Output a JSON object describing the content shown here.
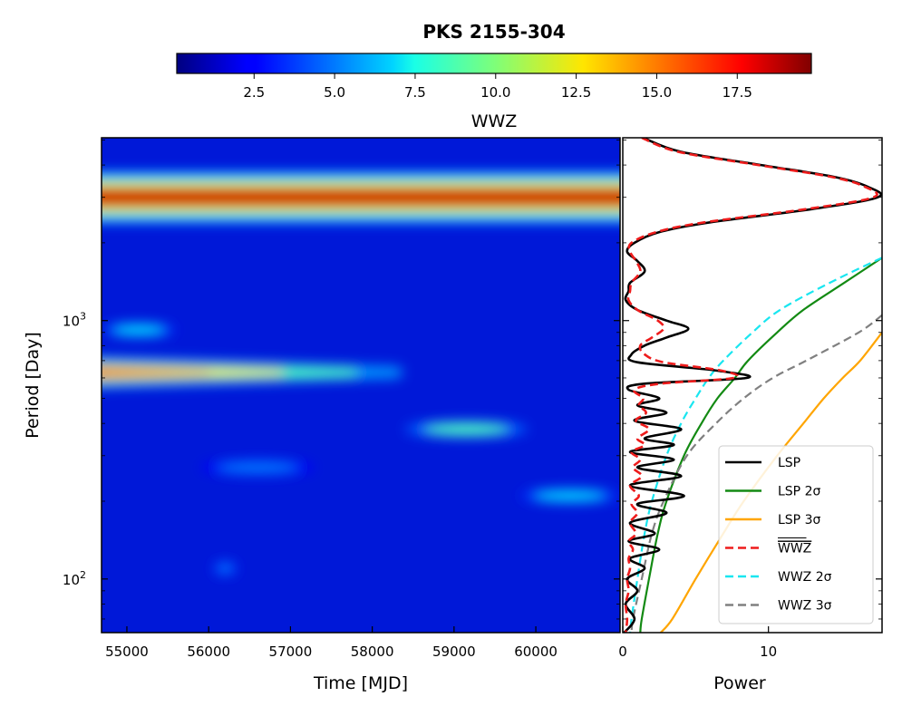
{
  "chart_data": [
    {
      "type": "heatmap",
      "title": "PKS 2155-304",
      "xlabel": "Time [MJD]",
      "ylabel": "Period [Day]",
      "xlim": [
        54690,
        61030
      ],
      "ylim": [
        62,
        5100
      ],
      "yscale": "log",
      "x_ticks": [
        55000,
        56000,
        57000,
        58000,
        59000,
        60000
      ],
      "x_tick_labels": [
        "55000",
        "56000",
        "57000",
        "58000",
        "59000",
        "60000"
      ],
      "y_major_ticks": [
        100,
        1000
      ],
      "y_tick_labels": [
        "10",
        "10"
      ],
      "y_tick_exponents": [
        "2",
        "3"
      ],
      "colormap": "jet",
      "colorbar": {
        "label": "WWZ",
        "range": [
          0.1,
          19.8
        ],
        "ticks": [
          2.5,
          5.0,
          7.5,
          10.0,
          12.5,
          15.0,
          17.5
        ],
        "tick_labels": [
          "2.5",
          "5.0",
          "7.5",
          "10.0",
          "12.5",
          "15.0",
          "17.5"
        ],
        "location": "top"
      },
      "features": [
        {
          "period_center": 3000,
          "peak_wwz": 18.5,
          "time_range": [
            54690,
            61030
          ],
          "note": "persistent band across full time range"
        },
        {
          "period_center": 630,
          "peak_wwz": 19.8,
          "time_range": [
            54690,
            58300
          ],
          "note": "fades from ~19.8 at start to ~8 near 57500"
        },
        {
          "period_center": 920,
          "peak_wwz": 7,
          "time_range": [
            54690,
            55600
          ]
        },
        {
          "period_center": 380,
          "peak_wwz": 9,
          "time_range": [
            58400,
            59900
          ]
        },
        {
          "period_center": 210,
          "peak_wwz": 7,
          "time_range": [
            59800,
            61030
          ]
        },
        {
          "period_center": 270,
          "peak_wwz": 5,
          "time_range": [
            55900,
            57300
          ]
        },
        {
          "period_center": 110,
          "peak_wwz": 5,
          "time_range": [
            56050,
            56350
          ]
        }
      ]
    },
    {
      "type": "line",
      "xlabel": "Power",
      "ylabel": "",
      "xlim": [
        0,
        17.8
      ],
      "ylim": [
        62,
        5100
      ],
      "yscale": "log",
      "x_ticks": [
        0,
        10
      ],
      "x_tick_labels": [
        "0",
        "10"
      ],
      "legend_position": "bottom-right",
      "series": [
        {
          "name": "LSP",
          "color": "#000000",
          "dash": "solid",
          "period": [
            5100,
            4500,
            4000,
            3600,
            3300,
            3000,
            2700,
            2400,
            2200,
            2000,
            1850,
            1700,
            1550,
            1400,
            1300,
            1200,
            1100,
            1000,
            930,
            860,
            800,
            740,
            690,
            640,
            600,
            570,
            540,
            500,
            470,
            440,
            410,
            380,
            350,
            330,
            310,
            290,
            270,
            250,
            230,
            210,
            195,
            180,
            165,
            150,
            140,
            130,
            120,
            110,
            100,
            90,
            80,
            70,
            62
          ],
          "power": [
            1.4,
            4.0,
            9.5,
            14.5,
            16.8,
            17.5,
            13.0,
            6.0,
            2.5,
            0.8,
            0.3,
            1.0,
            1.5,
            0.5,
            0.4,
            0.2,
            1.0,
            3.0,
            4.5,
            3.0,
            1.5,
            0.6,
            1.0,
            6.5,
            8.5,
            1.5,
            0.4,
            2.5,
            1.0,
            3.0,
            0.8,
            4.0,
            1.5,
            3.5,
            0.5,
            3.5,
            1.0,
            4.0,
            0.5,
            4.2,
            1.0,
            3.0,
            0.5,
            2.2,
            0.4,
            2.5,
            0.5,
            1.5,
            0.3,
            1.0,
            0.2,
            0.8,
            0.1
          ]
        },
        {
          "name": "LSP 2σ",
          "color": "#138a13",
          "dash": "solid",
          "period": [
            1750,
            1400,
            1100,
            900,
            700,
            600,
            500,
            400,
            300,
            200,
            150,
            100,
            70,
            62
          ],
          "power": [
            17.8,
            15.2,
            12.4,
            10.6,
            8.6,
            7.7,
            6.5,
            5.4,
            4.2,
            3.0,
            2.4,
            1.8,
            1.3,
            1.2
          ]
        },
        {
          "name": "LSP 3σ",
          "color": "#ffa500",
          "dash": "solid",
          "period": [
            900,
            700,
            600,
            500,
            400,
            300,
            200,
            150,
            100,
            70,
            62
          ],
          "power": [
            17.8,
            16.3,
            15.1,
            13.8,
            12.4,
            10.6,
            8.3,
            6.9,
            5.0,
            3.4,
            2.6
          ]
        },
        {
          "name": "WWZ",
          "color": "#ee1c1c",
          "dash": "dashed",
          "overline": true,
          "period": [
            5100,
            4500,
            4000,
            3600,
            3300,
            3000,
            2700,
            2400,
            2200,
            2000,
            1850,
            1700,
            1550,
            1400,
            1300,
            1200,
            1100,
            1000,
            930,
            860,
            800,
            740,
            690,
            640,
            600,
            570,
            540,
            500,
            470,
            440,
            410,
            380,
            350,
            330,
            310,
            290,
            270,
            250,
            230,
            210,
            195,
            180,
            165,
            150,
            140,
            130,
            120,
            110,
            100,
            90,
            80,
            70,
            62
          ],
          "power": [
            1.3,
            3.8,
            9.3,
            14.3,
            16.6,
            17.2,
            12.6,
            5.6,
            2.3,
            0.6,
            0.5,
            0.9,
            1.2,
            0.6,
            0.5,
            0.4,
            1.0,
            2.4,
            2.8,
            2.0,
            1.2,
            1.5,
            2.8,
            6.8,
            7.6,
            2.6,
            0.8,
            1.4,
            1.1,
            1.6,
            0.9,
            1.8,
            1.0,
            1.5,
            0.6,
            1.2,
            0.7,
            1.3,
            0.5,
            1.1,
            0.6,
            1.0,
            0.5,
            0.9,
            0.4,
            0.7,
            0.4,
            0.5,
            0.3,
            0.4,
            0.2,
            0.3,
            0.2
          ]
        },
        {
          "name": "WWZ 2σ",
          "color": "#19e6f0",
          "dash": "dashed",
          "period": [
            1750,
            1400,
            1100,
            900,
            700,
            600,
            500,
            400,
            300,
            200,
            150,
            100,
            70,
            62
          ],
          "power": [
            17.8,
            14.2,
            10.8,
            8.9,
            6.9,
            5.9,
            5.0,
            4.0,
            3.0,
            2.0,
            1.5,
            1.0,
            0.6,
            0.5
          ]
        },
        {
          "name": "WWZ 3σ",
          "color": "#808080",
          "dash": "dashed",
          "period": [
            1050,
            900,
            700,
            600,
            500,
            400,
            300,
            200,
            150,
            100,
            70,
            62
          ],
          "power": [
            17.8,
            16.2,
            12.6,
            10.3,
            8.3,
            6.4,
            4.4,
            2.8,
            2.0,
            1.3,
            0.7,
            0.6
          ]
        }
      ]
    }
  ]
}
